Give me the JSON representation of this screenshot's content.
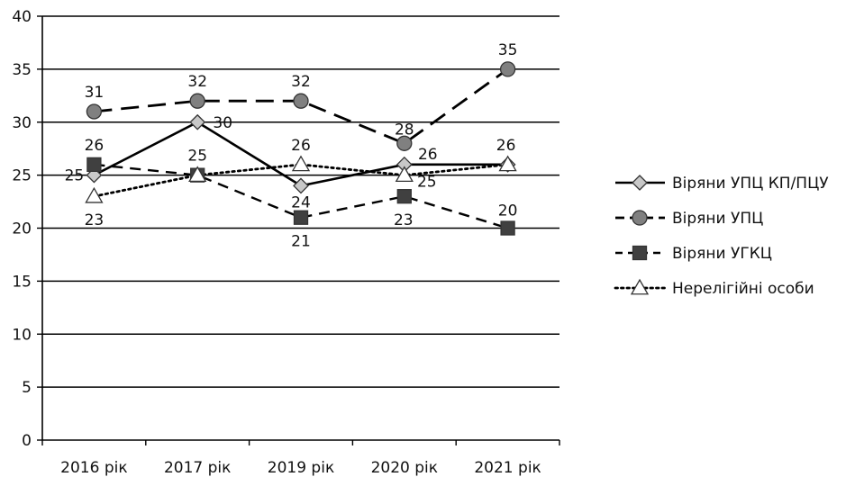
{
  "chart_data": {
    "type": "line",
    "categories": [
      "2016 рік",
      "2017 рік",
      "2019 рік",
      "2020 рік",
      "2021 рік"
    ],
    "ylim": [
      0,
      40
    ],
    "yticks": [
      0,
      5,
      10,
      15,
      20,
      25,
      30,
      35,
      40
    ],
    "grid": "horizontal",
    "legend_position": "right",
    "series": [
      {
        "name": "Віряни УПЦ КП/ПЦУ",
        "values": [
          25,
          30,
          24,
          26,
          26
        ],
        "marker": "diamond",
        "line": "solid",
        "marker_fill": "#c8c8c8",
        "labels": [
          true,
          true,
          true,
          true,
          false
        ]
      },
      {
        "name": "Віряни УПЦ",
        "values": [
          31,
          32,
          32,
          28,
          35
        ],
        "marker": "circle",
        "line": "dashed-long",
        "marker_fill": "#808080",
        "labels": [
          true,
          true,
          true,
          true,
          true
        ]
      },
      {
        "name": "Віряни УГКЦ",
        "values": [
          26,
          25,
          21,
          23,
          20
        ],
        "marker": "square",
        "line": "dashed",
        "marker_fill": "#404040",
        "labels": [
          true,
          false,
          true,
          true,
          true
        ]
      },
      {
        "name": "Нерелігійні особи",
        "values": [
          23,
          25,
          26,
          25,
          26
        ],
        "marker": "triangle",
        "line": "dotted",
        "marker_fill": "#ffffff",
        "labels": [
          true,
          true,
          true,
          true,
          true
        ]
      }
    ]
  }
}
